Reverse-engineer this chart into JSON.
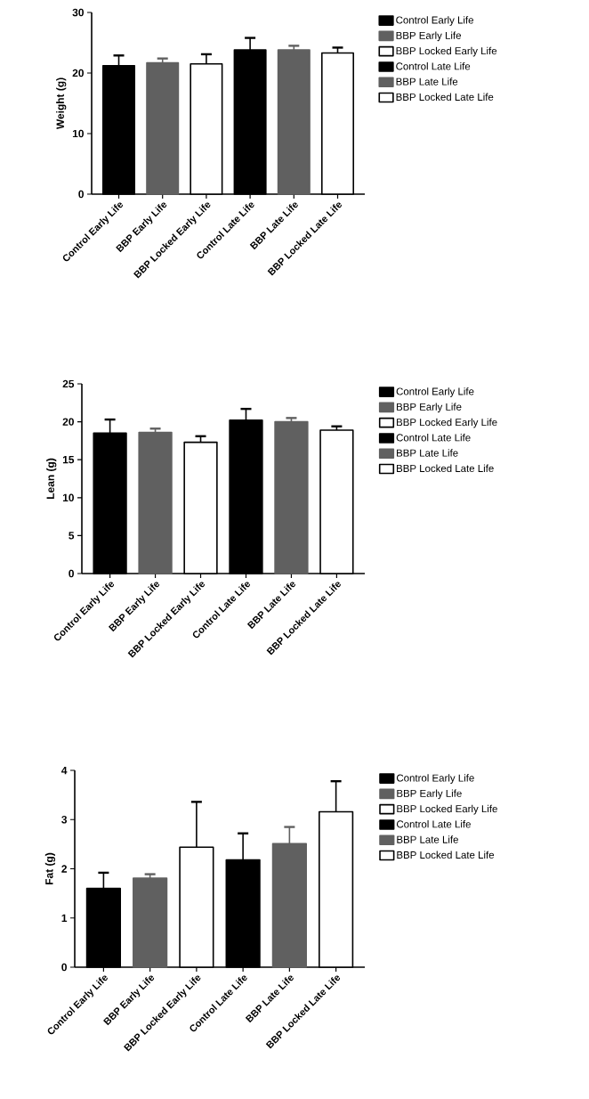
{
  "chart_data": [
    {
      "type": "bar",
      "ylabel": "Weight (g)",
      "categories": [
        "Control Early Life",
        "BBP Early Life",
        "BBP Locked Early Life",
        "Control Late Life",
        "BBP Late Life",
        "BBP Locked Late Life"
      ],
      "ylim": [
        0,
        30
      ],
      "yticks": [
        0,
        10,
        20,
        30
      ],
      "legend": "right",
      "series": [
        {
          "name": "Control Early Life",
          "color": "#000000",
          "values": [
            21.2,
            null,
            null,
            null,
            null,
            null
          ],
          "errors": [
            [
              21.2,
              22.9
            ],
            null,
            null,
            null,
            null,
            null
          ]
        },
        {
          "name": "BBP Early Life",
          "color": "#606060",
          "values": [
            null,
            21.7,
            null,
            null,
            null,
            null
          ],
          "errors": [
            null,
            [
              21.7,
              22.4
            ],
            null,
            null,
            null,
            null
          ]
        },
        {
          "name": "BBP Locked Early Life",
          "color": "#ffffff",
          "values": [
            null,
            null,
            21.5,
            null,
            null,
            null
          ],
          "errors": [
            null,
            null,
            [
              21.5,
              23.1
            ],
            null,
            null,
            null
          ]
        },
        {
          "name": "Control Late Life",
          "color": "#000000",
          "values": [
            null,
            null,
            null,
            23.8,
            null,
            null
          ],
          "errors": [
            null,
            null,
            null,
            [
              23.8,
              25.8
            ],
            null,
            null
          ]
        },
        {
          "name": "BBP Late Life",
          "color": "#606060",
          "values": [
            null,
            null,
            null,
            null,
            23.8,
            null
          ],
          "errors": [
            null,
            null,
            null,
            null,
            [
              23.8,
              24.5
            ],
            null
          ]
        },
        {
          "name": "BBP Locked Late Life",
          "color": "#ffffff",
          "values": [
            null,
            null,
            null,
            null,
            null,
            23.3
          ],
          "errors": [
            null,
            null,
            null,
            null,
            null,
            [
              23.3,
              24.2
            ]
          ]
        }
      ]
    },
    {
      "type": "bar",
      "ylabel": "Lean (g)",
      "categories": [
        "Control Early Life",
        "BBP Early Life",
        "BBP Locked Early Life",
        "Control Late Life",
        "BBP Late Life",
        "BBP Locked Late Life"
      ],
      "ylim": [
        0,
        25
      ],
      "yticks": [
        0,
        5,
        10,
        15,
        20,
        25
      ],
      "legend": "right",
      "series": [
        {
          "name": "Control Early Life",
          "color": "#000000",
          "values": [
            18.5,
            null,
            null,
            null,
            null,
            null
          ],
          "errors": [
            [
              18.5,
              20.3
            ],
            null,
            null,
            null,
            null,
            null
          ]
        },
        {
          "name": "BBP Early Life",
          "color": "#606060",
          "values": [
            null,
            18.6,
            null,
            null,
            null,
            null
          ],
          "errors": [
            null,
            [
              18.6,
              19.1
            ],
            null,
            null,
            null,
            null
          ]
        },
        {
          "name": "BBP Locked Early Life",
          "color": "#ffffff",
          "values": [
            null,
            null,
            17.3,
            null,
            null,
            null
          ],
          "errors": [
            null,
            null,
            [
              17.3,
              18.1
            ],
            null,
            null,
            null
          ]
        },
        {
          "name": "Control Late Life",
          "color": "#000000",
          "values": [
            null,
            null,
            null,
            20.2,
            null,
            null
          ],
          "errors": [
            null,
            null,
            null,
            [
              20.2,
              21.7
            ],
            null,
            null
          ]
        },
        {
          "name": "BBP Late Life",
          "color": "#606060",
          "values": [
            null,
            null,
            null,
            null,
            20.0,
            null
          ],
          "errors": [
            null,
            null,
            null,
            null,
            [
              20.0,
              20.5
            ],
            null
          ]
        },
        {
          "name": "BBP Locked Late Life",
          "color": "#ffffff",
          "values": [
            null,
            null,
            null,
            null,
            null,
            18.9
          ],
          "errors": [
            null,
            null,
            null,
            null,
            null,
            [
              18.9,
              19.4
            ]
          ]
        }
      ]
    },
    {
      "type": "bar",
      "ylabel": "Fat (g)",
      "categories": [
        "Control Early Life",
        "BBP Early Life",
        "BBP Locked Early Life",
        "Control Late Life",
        "BBP Late Life",
        "BBP Locked Late Life"
      ],
      "ylim": [
        0,
        4
      ],
      "yticks": [
        0,
        1,
        2,
        3,
        4
      ],
      "legend": "right",
      "series": [
        {
          "name": "Control Early Life",
          "color": "#000000",
          "values": [
            1.6,
            null,
            null,
            null,
            null,
            null
          ],
          "errors": [
            [
              1.6,
              1.92
            ],
            null,
            null,
            null,
            null,
            null
          ]
        },
        {
          "name": "BBP Early Life",
          "color": "#606060",
          "values": [
            null,
            1.81,
            null,
            null,
            null,
            null
          ],
          "errors": [
            null,
            [
              1.81,
              1.89
            ],
            null,
            null,
            null,
            null
          ]
        },
        {
          "name": "BBP Locked Early Life",
          "color": "#ffffff",
          "values": [
            null,
            null,
            2.44,
            null,
            null,
            null
          ],
          "errors": [
            null,
            null,
            [
              2.44,
              3.36
            ],
            null,
            null,
            null
          ]
        },
        {
          "name": "Control Late Life",
          "color": "#000000",
          "values": [
            null,
            null,
            null,
            2.18,
            null,
            null
          ],
          "errors": [
            null,
            null,
            null,
            [
              2.18,
              2.72
            ],
            null,
            null
          ]
        },
        {
          "name": "BBP Late Life",
          "color": "#606060",
          "values": [
            null,
            null,
            null,
            null,
            2.51,
            null
          ],
          "errors": [
            null,
            null,
            null,
            null,
            [
              2.51,
              2.85
            ],
            null
          ]
        },
        {
          "name": "BBP Locked Late Life",
          "color": "#ffffff",
          "values": [
            null,
            null,
            null,
            null,
            null,
            3.16
          ],
          "errors": [
            null,
            null,
            null,
            null,
            null,
            [
              3.16,
              3.78
            ]
          ]
        }
      ]
    }
  ]
}
